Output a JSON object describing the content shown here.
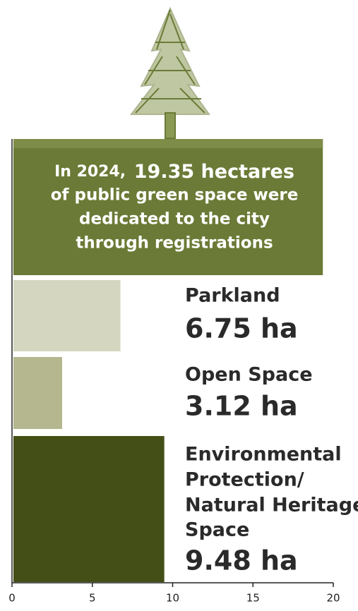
{
  "chart_data": {
    "type": "bar",
    "headline": {
      "prefix": "In 2024,",
      "lines": [
        "of public green space were",
        "dedicated to the city",
        "through registrations"
      ]
    },
    "total": {
      "value": 19.35,
      "label": "19.35 hectares",
      "color": "#6b7a36"
    },
    "categories": [
      [
        "Parkland"
      ],
      [
        "Open Space"
      ],
      [
        "Environmental",
        "Protection/",
        "Natural Heritage",
        "Space"
      ]
    ],
    "values": [
      6.75,
      3.12,
      9.48
    ],
    "value_labels": [
      "6.75 ha",
      "3.12 ha",
      "9.48 ha"
    ],
    "colors": [
      "#d4d6c0",
      "#b5b78f",
      "#434f17"
    ],
    "xlim": [
      0,
      20
    ],
    "xticks": [
      0,
      5,
      10,
      15,
      20
    ]
  }
}
